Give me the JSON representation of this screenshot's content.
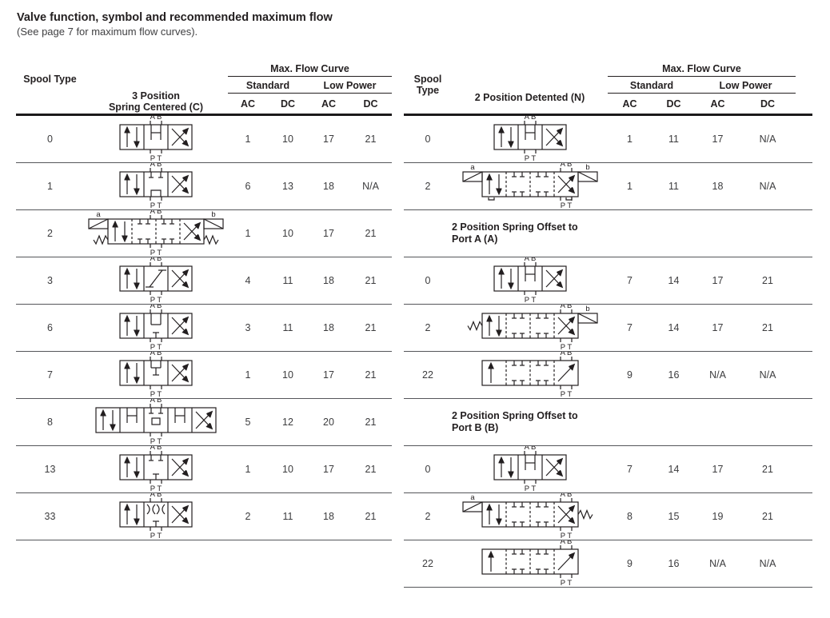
{
  "title": "Valve function, symbol and recommended maximum flow",
  "subtitle": "(See page 7 for maximum flow curves).",
  "port_labels": {
    "top": "A B",
    "bottom": "P T"
  },
  "headers": {
    "spool_type": "Spool Type",
    "max_flow_curve": "Max. Flow Curve",
    "standard": "Standard",
    "low_power": "Low Power",
    "ac": "AC",
    "dc": "DC",
    "left_symbol_line1": "3 Position",
    "left_symbol_line2": "Spring Centered (C)",
    "right_symbol_header": "2 Position Detented (N)"
  },
  "left_rows": [
    {
      "spool": "0",
      "values": [
        "1",
        "10",
        "17",
        "21"
      ],
      "symbol": {
        "cells": [
          "P",
          "c0",
          "X"
        ],
        "port_u": 1.5
      }
    },
    {
      "spool": "1",
      "values": [
        "6",
        "13",
        "18",
        "N/A"
      ],
      "symbol": {
        "cells": [
          "P",
          "c1",
          "X"
        ],
        "port_u": 1.5
      }
    },
    {
      "spool": "2",
      "values": [
        "1",
        "10",
        "17",
        "21"
      ],
      "symbol": {
        "cells": [
          "P",
          "T",
          "T",
          "X"
        ],
        "port_u": 2,
        "left": [
          "sol",
          "spring"
        ],
        "right": [
          "sol",
          "spring"
        ],
        "left_label": "a",
        "right_label": "b"
      }
    },
    {
      "spool": "3",
      "values": [
        "4",
        "11",
        "18",
        "21"
      ],
      "symbol": {
        "cells": [
          "P",
          "c3",
          "X"
        ],
        "port_u": 1.5
      }
    },
    {
      "spool": "6",
      "values": [
        "3",
        "11",
        "18",
        "21"
      ],
      "symbol": {
        "cells": [
          "P",
          "c6",
          "X"
        ],
        "port_u": 1.5
      }
    },
    {
      "spool": "7",
      "values": [
        "1",
        "10",
        "17",
        "21"
      ],
      "symbol": {
        "cells": [
          "P",
          "c7",
          "X"
        ],
        "port_u": 1.5
      }
    },
    {
      "spool": "8",
      "values": [
        "5",
        "12",
        "20",
        "21"
      ],
      "symbol": {
        "cells": [
          "P",
          "c0",
          "c8",
          "c0",
          "X"
        ],
        "port_u": 2.5
      }
    },
    {
      "spool": "13",
      "values": [
        "1",
        "10",
        "17",
        "21"
      ],
      "symbol": {
        "cells": [
          "P",
          "c13",
          "X"
        ],
        "port_u": 1.5
      }
    },
    {
      "spool": "33",
      "values": [
        "2",
        "11",
        "18",
        "21"
      ],
      "symbol": {
        "cells": [
          "P",
          "c33",
          "X"
        ],
        "port_u": 1.5
      }
    }
  ],
  "right_rows": [
    {
      "type": "data",
      "spool": "0",
      "values": [
        "1",
        "11",
        "17",
        "N/A"
      ],
      "symbol": {
        "cells": [
          "P",
          "c0",
          "X"
        ],
        "port_u": 1.5
      }
    },
    {
      "type": "data",
      "spool": "2",
      "values": [
        "1",
        "11",
        "18",
        "N/A"
      ],
      "symbol": {
        "cells": [
          "P",
          "T",
          "T",
          "X"
        ],
        "port_u": 3.5,
        "left": [
          "sol"
        ],
        "right": [
          "sol"
        ],
        "left_label": "a",
        "right_label": "b",
        "detent": true
      }
    },
    {
      "type": "section",
      "label_line1": "2 Position Spring Offset to",
      "label_line2": "Port A (A)"
    },
    {
      "type": "data",
      "spool": "0",
      "values": [
        "7",
        "14",
        "17",
        "21"
      ],
      "symbol": {
        "cells": [
          "P",
          "c0",
          "X"
        ],
        "port_u": 1.5
      }
    },
    {
      "type": "data",
      "spool": "2",
      "values": [
        "7",
        "14",
        "17",
        "21"
      ],
      "symbol": {
        "cells": [
          "P",
          "T",
          "T",
          "X"
        ],
        "port_u": 3.5,
        "left": [
          "spring"
        ],
        "right": [
          "sol"
        ],
        "right_label": "b"
      }
    },
    {
      "type": "data",
      "spool": "22",
      "values": [
        "9",
        "16",
        "N/A",
        "N/A"
      ],
      "symbol": {
        "cells": [
          "U",
          "T",
          "T",
          "D"
        ],
        "port_u": 3.5
      }
    },
    {
      "type": "section",
      "label_line1": "2 Position Spring Offset to",
      "label_line2": "Port B (B)"
    },
    {
      "type": "data",
      "spool": "0",
      "values": [
        "7",
        "14",
        "17",
        "21"
      ],
      "symbol": {
        "cells": [
          "P",
          "c0",
          "X"
        ],
        "port_u": 1.5
      }
    },
    {
      "type": "data",
      "spool": "2",
      "values": [
        "8",
        "15",
        "19",
        "21"
      ],
      "symbol": {
        "cells": [
          "P",
          "T",
          "T",
          "X"
        ],
        "port_u": 3.5,
        "left": [
          "sol"
        ],
        "right": [
          "spring"
        ],
        "left_label": "a"
      }
    },
    {
      "type": "data",
      "spool": "22",
      "values": [
        "9",
        "16",
        "N/A",
        "N/A"
      ],
      "symbol": {
        "cells": [
          "U",
          "T",
          "T",
          "D"
        ],
        "port_u": 3.5
      }
    }
  ]
}
